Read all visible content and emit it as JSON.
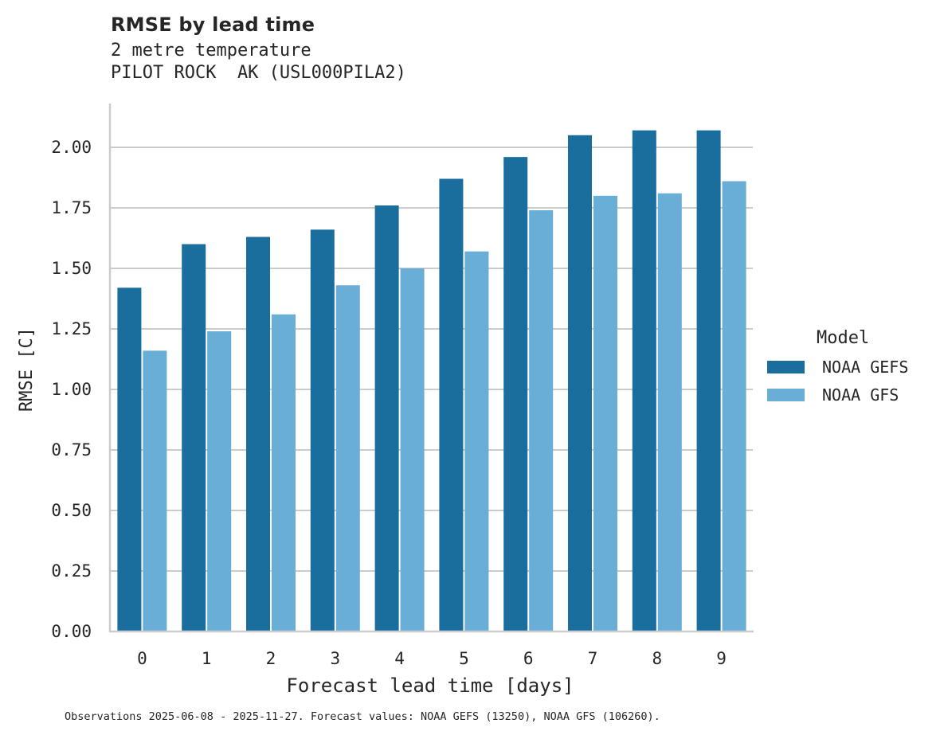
{
  "header": {
    "title": "RMSE by lead time",
    "subtitle_line1": "2 metre temperature",
    "subtitle_line2": "PILOT ROCK  AK (USL000PILA2)"
  },
  "legend": {
    "title": "Model",
    "items": [
      {
        "label": "NOAA GEFS",
        "color": "#1a6e9e"
      },
      {
        "label": "NOAA GFS",
        "color": "#69aed6"
      }
    ]
  },
  "footnote": "Observations 2025-06-08 - 2025-11-27. Forecast values: NOAA GEFS (13250), NOAA GFS (106260).",
  "chart_data": {
    "type": "bar",
    "title": "RMSE by lead time",
    "subtitle": "2 metre temperature / PILOT ROCK  AK (USL000PILA2)",
    "xlabel": "Forecast lead time [days]",
    "ylabel": "RMSE [C]",
    "categories": [
      "0",
      "1",
      "2",
      "3",
      "4",
      "5",
      "6",
      "7",
      "8",
      "9"
    ],
    "series": [
      {
        "name": "NOAA GEFS",
        "color": "#1a6e9e",
        "values": [
          1.42,
          1.6,
          1.63,
          1.66,
          1.76,
          1.87,
          1.96,
          2.05,
          2.07,
          2.07
        ]
      },
      {
        "name": "NOAA GFS",
        "color": "#69aed6",
        "values": [
          1.16,
          1.24,
          1.31,
          1.43,
          1.5,
          1.57,
          1.74,
          1.8,
          1.81,
          1.86
        ]
      }
    ],
    "ylim": [
      0,
      2.18
    ],
    "yticks": [
      "0.00",
      "0.25",
      "0.50",
      "0.75",
      "1.00",
      "1.25",
      "1.50",
      "1.75",
      "2.00"
    ],
    "grid": "horizontal",
    "legend_position": "right",
    "legend_title": "Model"
  }
}
